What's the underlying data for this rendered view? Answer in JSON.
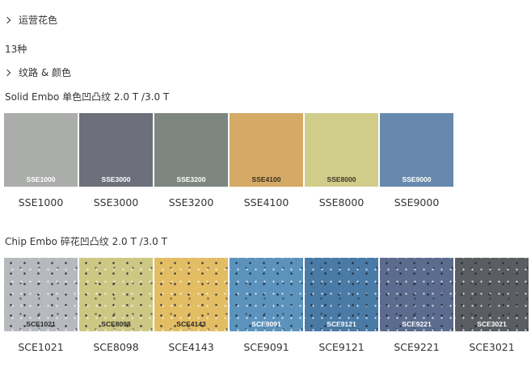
{
  "section1": {
    "label": "运营花色",
    "icon": "chevron-right-icon"
  },
  "count": "13种",
  "section2": {
    "label": "纹路 & 颜色",
    "icon": "chevron-right-icon"
  },
  "solid": {
    "title": "Solid Embo 单色凹凸纹 2.0 T /3.0 T",
    "items": [
      {
        "code": "SSE1000",
        "color": "#aaadaa",
        "text": "#ffffff"
      },
      {
        "code": "SSE3000",
        "color": "#6d707a",
        "text": "#ffffff"
      },
      {
        "code": "SSE3200",
        "color": "#7e8680",
        "text": "#ffffff"
      },
      {
        "code": "SSE4100",
        "color": "#d4aa66",
        "text": "#3a3020"
      },
      {
        "code": "SSE8000",
        "color": "#d0cc8a",
        "text": "#3a3a2a"
      },
      {
        "code": "SSE9000",
        "color": "#6889ae",
        "text": "#ffffff"
      }
    ]
  },
  "chip": {
    "title": "Chip Embo 碎花凹凸纹 2.0 T /3.0 T",
    "items": [
      {
        "code": "SCE1021",
        "color": "#b6b9bd",
        "text": "#2a2a2a"
      },
      {
        "code": "SCE8098",
        "color": "#cdc784",
        "text": "#2a2a2a"
      },
      {
        "code": "SCE4143",
        "color": "#e3bd64",
        "text": "#2a2a2a"
      },
      {
        "code": "SCE9091",
        "color": "#5b93bd",
        "text": "#ffffff"
      },
      {
        "code": "SCE9121",
        "color": "#4a7aa6",
        "text": "#ffffff"
      },
      {
        "code": "SCE9221",
        "color": "#5b6c8e",
        "text": "#ffffff"
      },
      {
        "code": "SCE3021",
        "color": "#5a5e62",
        "text": "#ffffff"
      }
    ]
  }
}
